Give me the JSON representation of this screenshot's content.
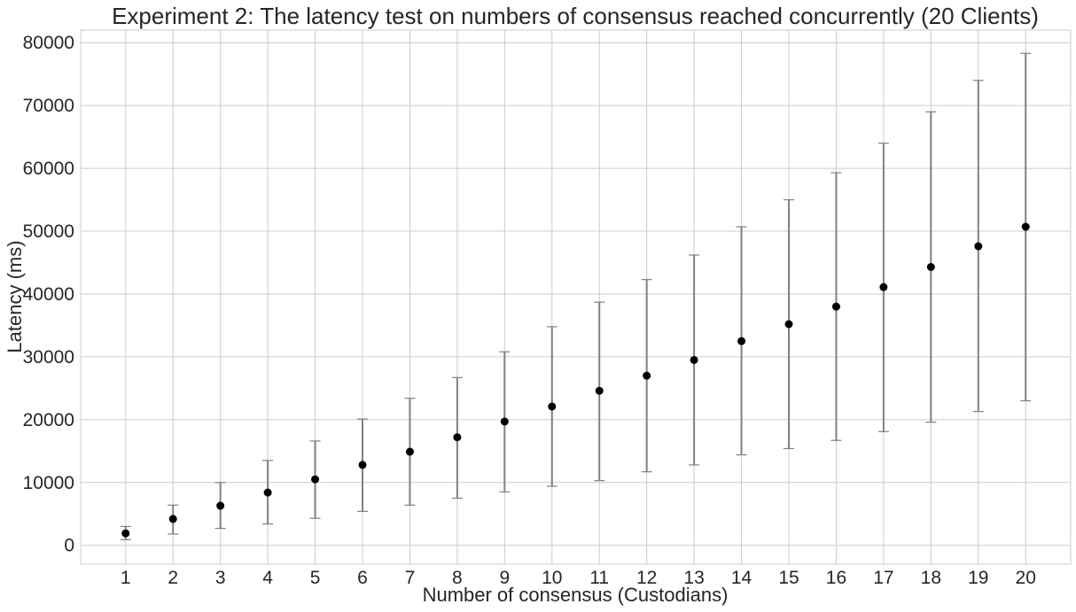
{
  "chart_data": {
    "type": "scatter",
    "title": "Experiment 2: The latency test on numbers of consensus reached concurrently (20 Clients)",
    "xlabel": "Number of consensus (Custodians)",
    "ylabel": "Latency (ms)",
    "x": [
      1,
      2,
      3,
      4,
      5,
      6,
      7,
      8,
      9,
      10,
      11,
      12,
      13,
      14,
      15,
      16,
      17,
      18,
      19,
      20
    ],
    "x_tick_labels": [
      "1",
      "2",
      "3",
      "4",
      "5",
      "6",
      "7",
      "8",
      "9",
      "10",
      "11",
      "12",
      "13",
      "14",
      "15",
      "16",
      "17",
      "18",
      "19",
      "20"
    ],
    "y": [
      1900,
      4200,
      6300,
      8400,
      10500,
      12800,
      14900,
      17200,
      19700,
      22100,
      24600,
      27000,
      29500,
      32500,
      35200,
      38000,
      41100,
      44300,
      47600,
      50700
    ],
    "y_low": [
      900,
      1800,
      2700,
      3400,
      4300,
      5400,
      6400,
      7500,
      8500,
      9400,
      10300,
      11700,
      12800,
      14400,
      15400,
      16700,
      18100,
      19600,
      21300,
      23000
    ],
    "y_high": [
      3000,
      6400,
      10000,
      13500,
      16600,
      20100,
      23400,
      26700,
      30800,
      34800,
      38700,
      42300,
      46200,
      50700,
      55000,
      59300,
      64000,
      69000,
      74000,
      78300
    ],
    "xlim": [
      0.05,
      20.95
    ],
    "ylim": [
      -3000,
      82000
    ],
    "y_ticks": [
      0,
      10000,
      20000,
      30000,
      40000,
      50000,
      60000,
      70000,
      80000
    ],
    "y_tick_labels": [
      "0",
      "10000",
      "20000",
      "30000",
      "40000",
      "50000",
      "60000",
      "70000",
      "80000"
    ],
    "grid": true,
    "legend": "none",
    "colors": {
      "point": "#000000",
      "errorbar": "#808080",
      "grid": "#cccccc",
      "frame": "#cccccc",
      "text": "#262626"
    }
  }
}
